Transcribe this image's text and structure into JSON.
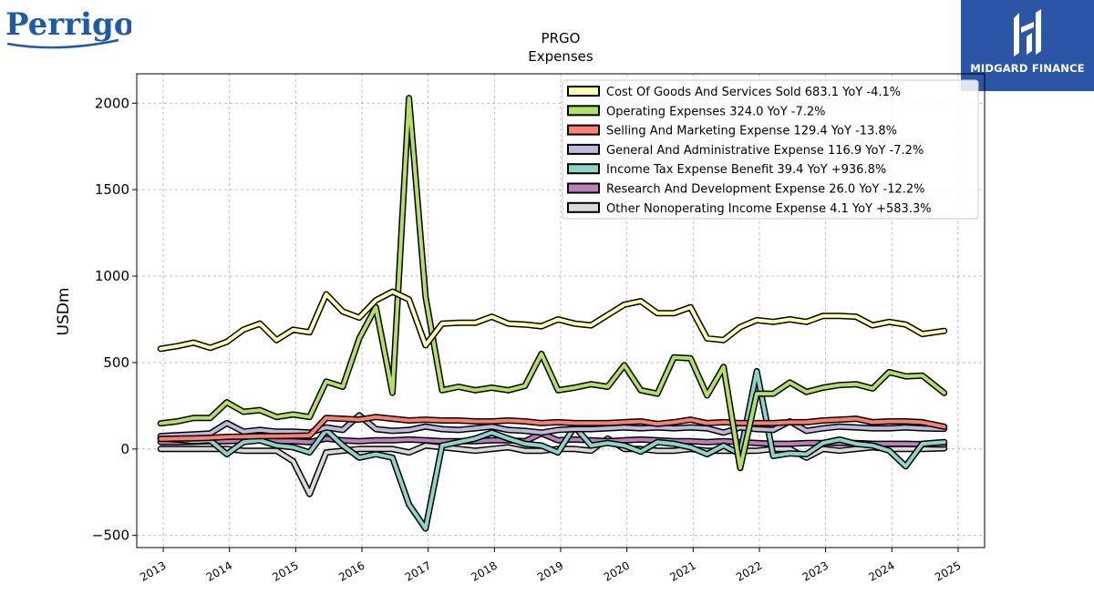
{
  "logos": {
    "left": {
      "text": "Perrigo",
      "color": "#1f5aa8",
      "icon": "perrigo-logo"
    },
    "right": {
      "text": "MIDGARD FINANCE",
      "bg": "#2b56a6",
      "icon": "midgard-finance-logo"
    }
  },
  "chart_data": {
    "type": "line",
    "title": "PRGO",
    "subtitle": "Expenses",
    "ylabel": "USDm",
    "xlabel": "",
    "ylim": [
      -570,
      2170
    ],
    "yticks": [
      -500,
      0,
      500,
      1000,
      1500,
      2000
    ],
    "ytick_labels": [
      "−500",
      "0",
      "500",
      "1000",
      "1500",
      "2000"
    ],
    "xlim": [
      2012.6,
      2025.4
    ],
    "xticks": [
      2013,
      2014,
      2015,
      2016,
      2017,
      2018,
      2019,
      2020,
      2021,
      2022,
      2023,
      2024,
      2025
    ],
    "xtick_labels": [
      "2013",
      "2014",
      "2015",
      "2016",
      "2017",
      "2018",
      "2019",
      "2020",
      "2021",
      "2022",
      "2023",
      "2024",
      "2025"
    ],
    "grid": true,
    "legend_position": "top-right",
    "x": [
      2012.96,
      2013.21,
      2013.46,
      2013.71,
      2013.96,
      2014.21,
      2014.46,
      2014.71,
      2014.96,
      2015.21,
      2015.46,
      2015.71,
      2015.96,
      2016.21,
      2016.46,
      2016.71,
      2016.96,
      2017.21,
      2017.46,
      2017.71,
      2017.96,
      2018.21,
      2018.46,
      2018.71,
      2018.96,
      2019.21,
      2019.46,
      2019.71,
      2019.96,
      2020.21,
      2020.46,
      2020.71,
      2020.96,
      2021.21,
      2021.46,
      2021.71,
      2021.96,
      2022.21,
      2022.46,
      2022.71,
      2022.96,
      2023.21,
      2023.46,
      2023.71,
      2023.96,
      2024.21,
      2024.46,
      2024.79
    ],
    "series": [
      {
        "name": "Cost Of Goods And Services Sold  683.1 YoY -4.1%",
        "color": "#ffffb3",
        "values": [
          580,
          595,
          615,
          585,
          620,
          690,
          725,
          630,
          690,
          675,
          895,
          795,
          760,
          860,
          910,
          865,
          600,
          725,
          730,
          730,
          765,
          725,
          720,
          710,
          750,
          725,
          715,
          775,
          835,
          855,
          785,
          785,
          820,
          640,
          630,
          705,
          745,
          735,
          750,
          735,
          770,
          770,
          765,
          715,
          735,
          720,
          665,
          683.1
        ]
      },
      {
        "name": "Operating Expenses  324.0 YoY -7.2%",
        "color": "#b3de69",
        "values": [
          148,
          160,
          180,
          180,
          270,
          215,
          225,
          185,
          200,
          185,
          390,
          360,
          640,
          820,
          325,
          2030,
          880,
          340,
          360,
          340,
          355,
          340,
          365,
          550,
          340,
          355,
          375,
          360,
          485,
          340,
          320,
          530,
          525,
          310,
          475,
          -110,
          320,
          320,
          385,
          330,
          355,
          370,
          375,
          350,
          445,
          420,
          425,
          324
        ]
      },
      {
        "name": "Selling And Marketing Expense  129.4 YoY -13.8%",
        "color": "#fb8072",
        "values": [
          58,
          60,
          62,
          65,
          70,
          72,
          74,
          75,
          76,
          78,
          180,
          175,
          170,
          185,
          175,
          165,
          170,
          165,
          165,
          160,
          160,
          165,
          160,
          150,
          155,
          150,
          150,
          150,
          155,
          160,
          145,
          155,
          170,
          150,
          155,
          150,
          150,
          150,
          155,
          155,
          165,
          170,
          175,
          155,
          160,
          160,
          155,
          129.4
        ]
      },
      {
        "name": "General And Administrative Expense  116.9 YoY -7.2%",
        "color": "#bebada",
        "values": [
          75,
          80,
          85,
          90,
          150,
          100,
          110,
          100,
          100,
          95,
          125,
          110,
          195,
          115,
          105,
          110,
          130,
          115,
          110,
          120,
          130,
          110,
          105,
          95,
          110,
          115,
          115,
          120,
          125,
          120,
          125,
          120,
          125,
          120,
          95,
          125,
          115,
          110,
          160,
          105,
          120,
          130,
          125,
          120,
          120,
          125,
          120,
          116.9
        ]
      },
      {
        "name": "Income Tax Expense Benefit  39.4 YoY +936.8%",
        "color": "#8dd3c7",
        "values": [
          60,
          55,
          45,
          50,
          -30,
          40,
          50,
          20,
          10,
          -20,
          110,
          20,
          -50,
          -30,
          -50,
          -320,
          -460,
          20,
          40,
          60,
          95,
          60,
          30,
          20,
          -20,
          130,
          20,
          35,
          20,
          -15,
          40,
          30,
          10,
          -30,
          20,
          -30,
          450,
          -40,
          -25,
          -30,
          35,
          55,
          30,
          20,
          -10,
          -100,
          30,
          39.4
        ]
      },
      {
        "name": "Research And Development Expense  26.0 YoY -12.2%",
        "color": "#bc80bd",
        "values": [
          40,
          40,
          42,
          45,
          45,
          50,
          55,
          45,
          45,
          40,
          60,
          50,
          45,
          50,
          50,
          55,
          50,
          45,
          45,
          45,
          50,
          50,
          45,
          90,
          50,
          55,
          50,
          45,
          50,
          55,
          50,
          45,
          45,
          40,
          45,
          40,
          35,
          30,
          30,
          35,
          35,
          35,
          35,
          30,
          30,
          30,
          28,
          26.0
        ]
      },
      {
        "name": "Other Nonoperating Income Expense  4.1 YoY +583.3%",
        "color": "#d9d9d9",
        "values": [
          0,
          0,
          0,
          0,
          0,
          -10,
          -10,
          -10,
          -70,
          -260,
          -20,
          -10,
          0,
          0,
          0,
          -20,
          20,
          10,
          0,
          -10,
          0,
          10,
          -10,
          -10,
          0,
          0,
          -10,
          60,
          0,
          0,
          -10,
          -10,
          0,
          -10,
          -10,
          -10,
          -10,
          0,
          0,
          -50,
          0,
          -10,
          0,
          10,
          0,
          0,
          0,
          4.1
        ]
      }
    ]
  }
}
